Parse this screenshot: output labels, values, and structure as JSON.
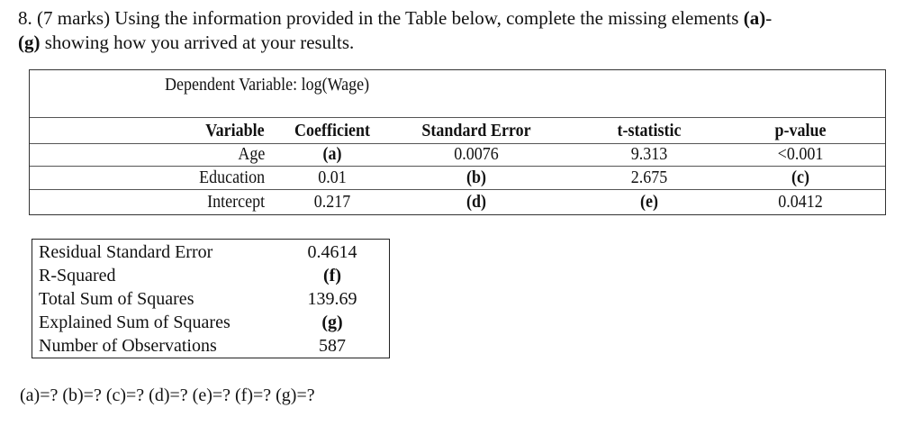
{
  "question": {
    "line1_prefix": "8. (7 marks) Using the information provided in the Table below, complete the missing elements ",
    "line1_bold": "(a)",
    "line1_suffix": "-",
    "line2_bold": "(g)",
    "line2_suffix": " showing how you arrived at your results."
  },
  "regression_table": {
    "dependent_variable": "Dependent Variable: log(Wage)",
    "headers": [
      "Variable",
      "Coefficient",
      "Standard Error",
      "t-statistic",
      "p-value"
    ],
    "rows": [
      [
        "Age",
        "(a)",
        "0.0076",
        "9.313",
        "<0.001"
      ],
      [
        "Education",
        "0.01",
        "(b)",
        "2.675",
        "(c)"
      ],
      [
        "Intercept",
        "0.217",
        "(d)",
        "(e)",
        "0.0412"
      ]
    ]
  },
  "stats_table": {
    "rows": [
      {
        "label": "Residual Standard Error",
        "value": "0.4614"
      },
      {
        "label": "R-Squared",
        "value": "(f)"
      },
      {
        "label": "Total Sum of Squares",
        "value": "139.69"
      },
      {
        "label": "Explained Sum of Squares",
        "value": "(g)"
      },
      {
        "label": "Number of Observations",
        "value": "587"
      }
    ]
  },
  "answer_prompt": "(a)=? (b)=? (c)=? (d)=? (e)=? (f)=? (g)=?"
}
